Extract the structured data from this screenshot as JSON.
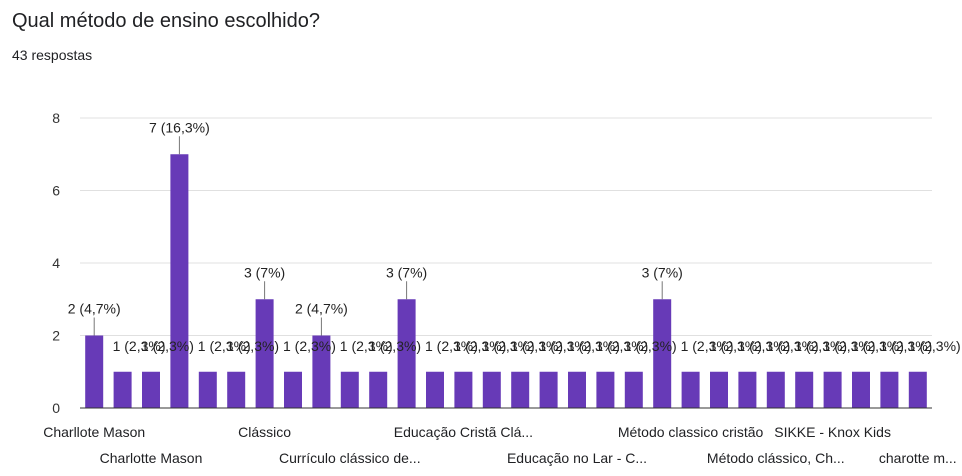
{
  "header": {
    "title": "Qual método de ensino escolhido?",
    "responses": "43 respostas"
  },
  "colors": {
    "bar": "#673ab7",
    "grid": "#e0e0e0",
    "axis": "#333333",
    "text": "#202124"
  },
  "chart_data": {
    "type": "bar",
    "ylim": [
      0,
      8
    ],
    "yticks": [
      0,
      2,
      4,
      6,
      8
    ],
    "grid": true,
    "values": [
      2,
      1,
      1,
      7,
      1,
      1,
      3,
      1,
      2,
      1,
      1,
      3,
      1,
      1,
      1,
      1,
      1,
      1,
      1,
      1,
      3,
      1,
      1,
      1,
      1,
      1,
      1,
      1,
      1,
      1
    ],
    "data_labels": [
      "2 (4,7%)",
      "1 (2,3%)",
      "1 (2,3%)",
      "7 (16,3%)",
      "1 (2,3%)",
      "1 (2,3%)",
      "3 (7%)",
      "1 (2,3%)",
      "2 (4,7%)",
      "1 (2,3%)",
      "1 (2,3%)",
      "3 (7%)",
      "1 (2,3%)",
      "1 (2,3%)",
      "1 (2,3%)",
      "1 (2,3%)",
      "1 (2,3%)",
      "1 (2,3%)",
      "1 (2,3%)",
      "1 (2,3%)",
      "3 (7%)",
      "1 (2,3%)",
      "1 (2,3%)",
      "1 (2,3%)",
      "1 (2,3%)",
      "1 (2,3%)",
      "1 (2,3%)",
      "1 (2,3%)",
      "1 (2,3%)",
      "1 (2,3%)"
    ],
    "category_labels": [
      {
        "index": 0,
        "text": "Charllote Mason",
        "row": 0
      },
      {
        "index": 2,
        "text": "Charlotte Mason",
        "row": 1
      },
      {
        "index": 6,
        "text": "Clássico",
        "row": 0
      },
      {
        "index": 9,
        "text": "Currículo clássico de...",
        "row": 1
      },
      {
        "index": 13,
        "text": "Educação Cristã Clá...",
        "row": 0
      },
      {
        "index": 17,
        "text": "Educação no Lar - C...",
        "row": 1
      },
      {
        "index": 21,
        "text": "Método classico cristão",
        "row": 0
      },
      {
        "index": 24,
        "text": "Método clássico, Ch...",
        "row": 1
      },
      {
        "index": 26,
        "text": "SIKKE - Knox Kids",
        "row": 0
      },
      {
        "index": 29,
        "text": "charotte m...",
        "row": 1
      }
    ]
  }
}
